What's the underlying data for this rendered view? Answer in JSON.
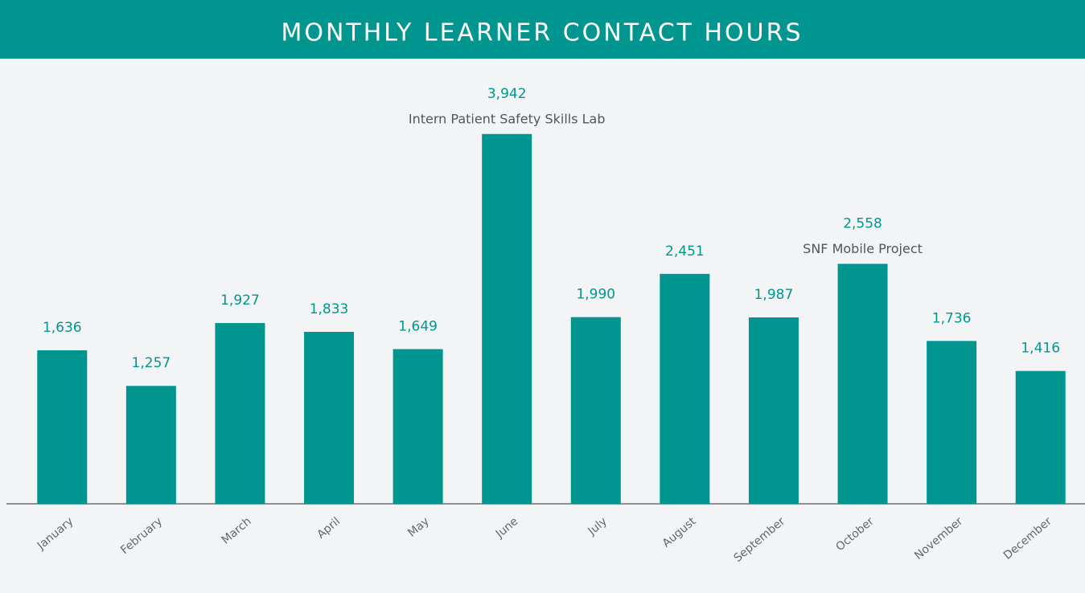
{
  "chart_data": {
    "type": "bar",
    "title": "MONTHLY LEARNER CONTACT HOURS",
    "categories": [
      "January",
      "February",
      "March",
      "April",
      "May",
      "June",
      "July",
      "August",
      "September",
      "October",
      "November",
      "December"
    ],
    "values": [
      1636,
      1257,
      1927,
      1833,
      1649,
      3942,
      1990,
      2451,
      1987,
      2558,
      1736,
      1416
    ],
    "value_labels": [
      "1,636",
      "1,257",
      "1,927",
      "1,833",
      "1,649",
      "3,942",
      "1,990",
      "2,451",
      "1,987",
      "2,558",
      "1,736",
      "1,416"
    ],
    "annotations": [
      {
        "category": "June",
        "text": "Intern Patient Safety Skills Lab"
      },
      {
        "category": "October",
        "text": "SNF Mobile Project"
      }
    ],
    "color": "#00968f",
    "ylim": [
      0,
      4000
    ]
  }
}
